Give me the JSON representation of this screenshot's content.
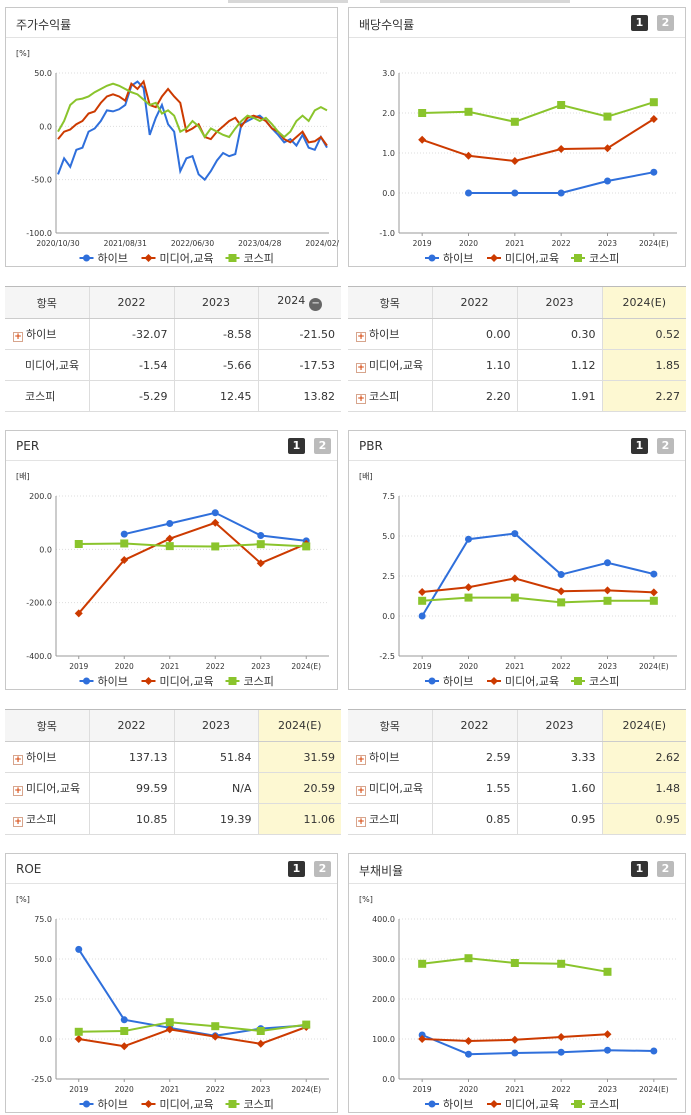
{
  "panels": [
    {
      "title": "주가수익률",
      "btn1": "",
      "btn2": ""
    },
    {
      "title": "배당수익률",
      "btn1": "1",
      "btn2": "2"
    },
    {
      "title": "PER",
      "btn1": "1",
      "btn2": "2"
    },
    {
      "title": "PBR",
      "btn1": "1",
      "btn2": "2"
    },
    {
      "title": "ROE",
      "btn1": "1",
      "btn2": "2"
    },
    {
      "title": "부채비율",
      "btn1": "1",
      "btn2": "2"
    }
  ],
  "legend": [
    "하이브",
    "미디어,교육",
    "코스피"
  ],
  "colors": {
    "hybe": "#2f6fdb",
    "media": "#cc3a00",
    "kospi": "#8ac42c",
    "highlight": "#fdf8d2"
  },
  "tables": [
    {
      "headers": [
        "항목",
        "2022",
        "2023",
        "2024"
      ],
      "minus": "−",
      "rows": [
        {
          "name": "하이브",
          "plus": true,
          "v": [
            "-32.07",
            "-8.58",
            "-21.50"
          ]
        },
        {
          "name": "미디어,교육",
          "plus": false,
          "v": [
            "-1.54",
            "-5.66",
            "-17.53"
          ]
        },
        {
          "name": "코스피",
          "plus": false,
          "v": [
            "-5.29",
            "12.45",
            "13.82"
          ]
        }
      ]
    },
    {
      "headers": [
        "항목",
        "2022",
        "2023",
        "2024(E)"
      ],
      "rows": [
        {
          "name": "하이브",
          "plus": true,
          "v": [
            "0.00",
            "0.30",
            "0.52"
          ]
        },
        {
          "name": "미디어,교육",
          "plus": true,
          "v": [
            "1.10",
            "1.12",
            "1.85"
          ]
        },
        {
          "name": "코스피",
          "plus": true,
          "v": [
            "2.20",
            "1.91",
            "2.27"
          ]
        }
      ]
    },
    {
      "headers": [
        "항목",
        "2022",
        "2023",
        "2024(E)"
      ],
      "rows": [
        {
          "name": "하이브",
          "plus": true,
          "v": [
            "137.13",
            "51.84",
            "31.59"
          ]
        },
        {
          "name": "미디어,교육",
          "plus": true,
          "v": [
            "99.59",
            "N/A",
            "20.59"
          ]
        },
        {
          "name": "코스피",
          "plus": true,
          "v": [
            "10.85",
            "19.39",
            "11.06"
          ]
        }
      ]
    },
    {
      "headers": [
        "항목",
        "2022",
        "2023",
        "2024(E)"
      ],
      "rows": [
        {
          "name": "하이브",
          "plus": true,
          "v": [
            "2.59",
            "3.33",
            "2.62"
          ]
        },
        {
          "name": "미디어,교육",
          "plus": true,
          "v": [
            "1.55",
            "1.60",
            "1.48"
          ]
        },
        {
          "name": "코스피",
          "plus": true,
          "v": [
            "0.85",
            "0.95",
            "0.95"
          ]
        }
      ]
    }
  ],
  "chart_data": [
    {
      "type": "line",
      "title": "주가수익률",
      "unit": "[%]",
      "ylim": [
        -100,
        50
      ],
      "yticks": [
        "50.0",
        "0.0",
        "-50.0",
        "-100.0"
      ],
      "xlabels": [
        "2020/10/30",
        "2021/08/31",
        "2022/06/30",
        "2023/04/28",
        "2024/02/29"
      ],
      "series": [
        {
          "name": "하이브",
          "values": [
            -45,
            -30,
            -38,
            -22,
            -20,
            -5,
            -2,
            5,
            15,
            14,
            16,
            20,
            38,
            42,
            36,
            -8,
            8,
            20,
            2,
            -5,
            -42,
            -30,
            -28,
            -45,
            -50,
            -42,
            -32,
            -25,
            -28,
            -26,
            2,
            5,
            8,
            10,
            5,
            -2,
            -8,
            -15,
            -12,
            -18,
            -8,
            -20,
            -22,
            -10,
            -20
          ]
        },
        {
          "name": "미디어,교육",
          "values": [
            -12,
            -5,
            -3,
            2,
            5,
            12,
            14,
            22,
            28,
            30,
            28,
            24,
            40,
            35,
            42,
            20,
            18,
            28,
            35,
            28,
            22,
            -5,
            -2,
            2,
            -10,
            -12,
            -5,
            0,
            5,
            8,
            0,
            8,
            10,
            8,
            5,
            -2,
            -5,
            -12,
            -15,
            -10,
            -5,
            -15,
            -14,
            -10,
            -18
          ]
        },
        {
          "name": "코스피",
          "values": [
            -5,
            5,
            20,
            25,
            26,
            28,
            32,
            35,
            38,
            40,
            38,
            35,
            32,
            30,
            25,
            20,
            22,
            12,
            15,
            10,
            -5,
            -2,
            5,
            0,
            -10,
            -2,
            -5,
            -8,
            -10,
            -2,
            5,
            10,
            8,
            5,
            8,
            2,
            -5,
            -10,
            -5,
            5,
            10,
            5,
            15,
            18,
            15
          ]
        }
      ]
    },
    {
      "type": "line",
      "title": "배당수익률",
      "unit": "",
      "ylim": [
        -1,
        3
      ],
      "yticks": [
        "3.0",
        "2.0",
        "1.0",
        "0.0",
        "-1.0"
      ],
      "x": [
        "2019",
        "2020",
        "2021",
        "2022",
        "2023",
        "2024(E)"
      ],
      "series": [
        {
          "name": "하이브",
          "values": [
            null,
            0.0,
            0.0,
            0.0,
            0.3,
            0.52
          ]
        },
        {
          "name": "미디어,교육",
          "values": [
            1.33,
            0.93,
            0.8,
            1.1,
            1.12,
            1.85
          ]
        },
        {
          "name": "코스피",
          "values": [
            2.0,
            2.03,
            1.78,
            2.2,
            1.91,
            2.27
          ]
        }
      ]
    },
    {
      "type": "line",
      "title": "PER",
      "unit": "[배]",
      "ylim": [
        -400,
        200
      ],
      "yticks": [
        "200.0",
        "0.0",
        "-200.0",
        "-400.0"
      ],
      "x": [
        "2019",
        "2020",
        "2021",
        "2022",
        "2023",
        "2024(E)"
      ],
      "series": [
        {
          "name": "하이브",
          "values": [
            null,
            57,
            97,
            137.13,
            51.84,
            31.59
          ]
        },
        {
          "name": "미디어,교육",
          "values": [
            -240,
            -40,
            40,
            99.59,
            -52,
            20.59
          ]
        },
        {
          "name": "코스피",
          "values": [
            20,
            22,
            12,
            10.85,
            19.39,
            11.06
          ]
        }
      ]
    },
    {
      "type": "line",
      "title": "PBR",
      "unit": "[배]",
      "ylim": [
        -2.5,
        7.5
      ],
      "yticks": [
        "7.5",
        "5.0",
        "2.5",
        "0.0",
        "-2.5"
      ],
      "x": [
        "2019",
        "2020",
        "2021",
        "2022",
        "2023",
        "2024(E)"
      ],
      "series": [
        {
          "name": "하이브",
          "values": [
            0.0,
            4.8,
            5.15,
            2.59,
            3.33,
            2.62
          ]
        },
        {
          "name": "미디어,교육",
          "values": [
            1.5,
            1.8,
            2.35,
            1.55,
            1.6,
            1.48
          ]
        },
        {
          "name": "코스피",
          "values": [
            0.95,
            1.15,
            1.15,
            0.85,
            0.95,
            0.95
          ]
        }
      ]
    },
    {
      "type": "line",
      "title": "ROE",
      "unit": "[%]",
      "ylim": [
        -25,
        75
      ],
      "yticks": [
        "75.0",
        "50.0",
        "25.0",
        "0.0",
        "-25.0"
      ],
      "x": [
        "2019",
        "2020",
        "2021",
        "2022",
        "2023",
        "2024(E)"
      ],
      "series": [
        {
          "name": "하이브",
          "values": [
            56,
            12,
            7,
            2,
            6.5,
            8.5
          ]
        },
        {
          "name": "미디어,교육",
          "values": [
            0,
            -4.5,
            6,
            1.5,
            -3,
            7.5
          ]
        },
        {
          "name": "코스피",
          "values": [
            4.5,
            5,
            10.5,
            8,
            5,
            9
          ]
        }
      ]
    },
    {
      "type": "line",
      "title": "부채비율",
      "unit": "[%]",
      "ylim": [
        0,
        400
      ],
      "yticks": [
        "400.0",
        "300.0",
        "200.0",
        "100.0",
        "0.0"
      ],
      "x": [
        "2019",
        "2020",
        "2021",
        "2022",
        "2023",
        "2024(E)"
      ],
      "series": [
        {
          "name": "하이브",
          "values": [
            110,
            62,
            65,
            67,
            72,
            70
          ]
        },
        {
          "name": "미디어,교육",
          "values": [
            100,
            95,
            98,
            105,
            112,
            null
          ]
        },
        {
          "name": "코스피",
          "values": [
            288,
            302,
            290,
            288,
            268,
            null
          ]
        }
      ]
    }
  ]
}
